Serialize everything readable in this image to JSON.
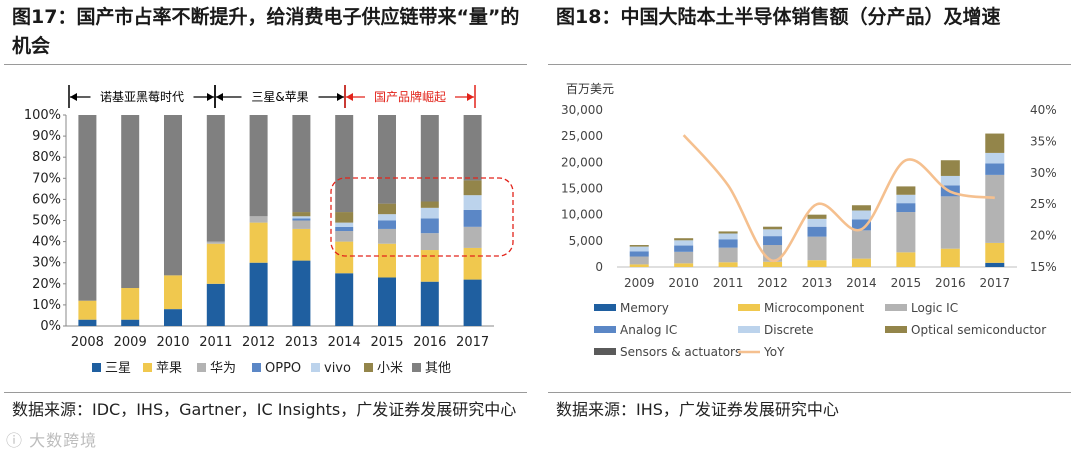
{
  "left": {
    "title": "图17：国产市占率不断提升，给消费电子供应链带来“量”的机会",
    "source": "数据来源：IDC，IHS，Gartner，IC Insights，广发证券发展研究中心",
    "chart_data": {
      "type": "bar",
      "stacked": true,
      "categories": [
        "2008",
        "2009",
        "2010",
        "2011",
        "2012",
        "2013",
        "2014",
        "2015",
        "2016",
        "2017"
      ],
      "yticks": [
        "0%",
        "10%",
        "20%",
        "30%",
        "40%",
        "50%",
        "60%",
        "70%",
        "80%",
        "90%",
        "100%"
      ],
      "ylim": [
        0,
        100
      ],
      "series": [
        {
          "name": "三星",
          "color": "#1f5fa0",
          "values": [
            3,
            3,
            8,
            20,
            30,
            31,
            25,
            23,
            21,
            22
          ]
        },
        {
          "name": "苹果",
          "color": "#f0c84e",
          "values": [
            9,
            15,
            16,
            19,
            19,
            15,
            15,
            16,
            15,
            15
          ]
        },
        {
          "name": "华为",
          "color": "#b3b3b3",
          "values": [
            0,
            0,
            0,
            1,
            3,
            4,
            5,
            7,
            8,
            10
          ]
        },
        {
          "name": "OPPO",
          "color": "#5b87c6",
          "values": [
            0,
            0,
            0,
            0,
            0,
            1,
            2,
            4,
            7,
            8
          ]
        },
        {
          "name": "vivo",
          "color": "#bcd3ec",
          "values": [
            0,
            0,
            0,
            0,
            0,
            1,
            2,
            3,
            5,
            7
          ]
        },
        {
          "name": "小米",
          "color": "#93854a",
          "values": [
            0,
            0,
            0,
            0,
            0,
            2,
            5,
            5,
            3,
            7
          ]
        },
        {
          "name": "其他",
          "color": "#808080",
          "values": [
            88,
            82,
            76,
            60,
            48,
            46,
            46,
            42,
            41,
            31
          ]
        }
      ],
      "periods": [
        {
          "label": "诺基亚黑莓时代",
          "color": "#000000"
        },
        {
          "label": "三星&苹果",
          "color": "#000000"
        },
        {
          "label": "国产品牌崛起",
          "color": "#e2231a"
        }
      ]
    }
  },
  "right": {
    "title": "图18：中国大陆本土半导体销售额（分产品）及增速",
    "unit": "百万美元",
    "source": "数据来源：IHS，广发证券发展研究中心",
    "chart_data": {
      "type": "bar",
      "stacked": true,
      "categories": [
        "2009",
        "2010",
        "2011",
        "2012",
        "2013",
        "2014",
        "2015",
        "2016",
        "2017"
      ],
      "ylim": [
        0,
        30000
      ],
      "yticks": [
        "0",
        "5,000",
        "10,000",
        "15,000",
        "20,000",
        "25,000",
        "30,000"
      ],
      "y2lim": [
        15,
        40
      ],
      "y2ticks": [
        "15%",
        "20%",
        "25%",
        "30%",
        "35%",
        "40%"
      ],
      "series": [
        {
          "name": "Memory",
          "color": "#1f5fa0",
          "values": [
            0,
            0,
            0,
            0,
            0,
            0,
            0,
            0,
            800
          ]
        },
        {
          "name": "Microcomponent",
          "color": "#f0c84e",
          "values": [
            500,
            700,
            900,
            1000,
            1300,
            1600,
            2800,
            3500,
            3800
          ]
        },
        {
          "name": "Logic IC",
          "color": "#b3b3b3",
          "values": [
            1500,
            2200,
            2800,
            3200,
            4500,
            5400,
            7700,
            10000,
            13000
          ]
        },
        {
          "name": "Analog IC",
          "color": "#5b87c6",
          "values": [
            1000,
            1200,
            1600,
            1700,
            1900,
            2100,
            1700,
            2100,
            2200
          ]
        },
        {
          "name": "Discrete",
          "color": "#bcd3ec",
          "values": [
            900,
            1000,
            1100,
            1300,
            1500,
            1700,
            1600,
            1800,
            2000
          ]
        },
        {
          "name": "Optical semiconductor",
          "color": "#93854a",
          "values": [
            300,
            400,
            400,
            500,
            800,
            1000,
            1600,
            3000,
            3700
          ]
        },
        {
          "name": "Sensors & actuators",
          "color": "#5a5a5a",
          "values": [
            0,
            0,
            0,
            0,
            0,
            0,
            0,
            0,
            0
          ]
        }
      ],
      "line": {
        "name": "YoY",
        "color": "#f5c08f",
        "values": [
          null,
          36,
          28,
          16,
          25,
          21,
          32,
          27,
          26
        ]
      }
    }
  }
}
